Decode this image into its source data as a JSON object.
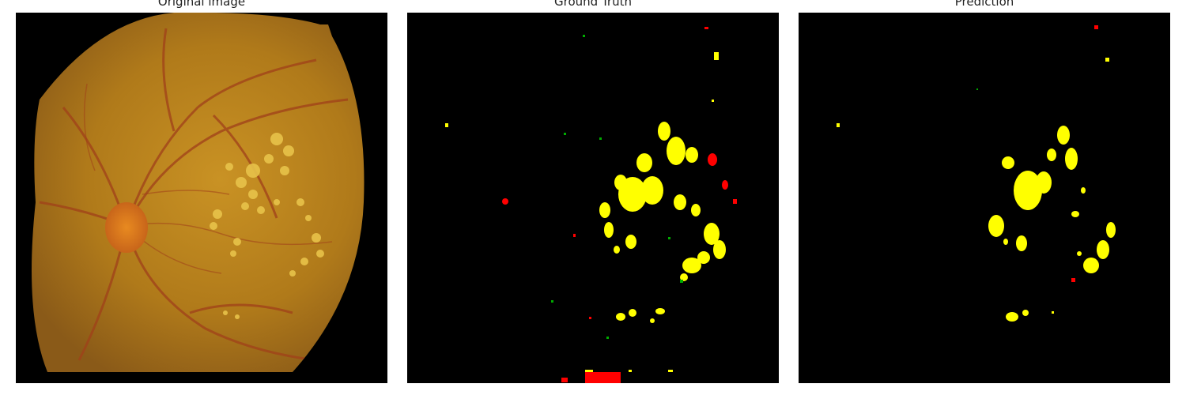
{
  "panels": [
    {
      "title": "Original image"
    },
    {
      "title": "Ground Truth"
    },
    {
      "title": "Prediction"
    }
  ],
  "colors": {
    "background": "#000000",
    "hard_exudates": "#ffff00",
    "hemorrhages": "#ff0000",
    "microaneurysms": "#00aa00",
    "fundus": "#b07a1a"
  }
}
